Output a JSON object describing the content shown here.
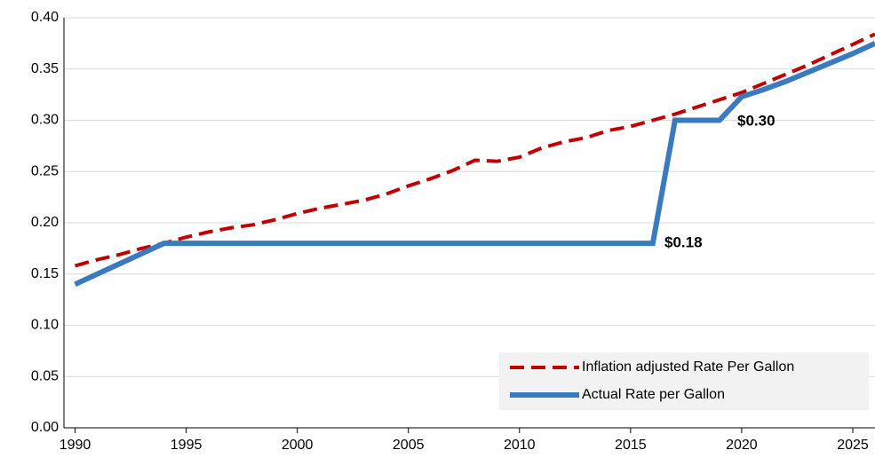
{
  "chart_data": {
    "type": "line",
    "xlim": [
      1989.5,
      2026
    ],
    "xticks": [
      1990,
      1995,
      2000,
      2005,
      2010,
      2015,
      2020,
      2025
    ],
    "ylim": [
      0,
      0.4
    ],
    "yticks": [
      {
        "value": 0,
        "label": "0.00"
      },
      0.05,
      {
        "value": 0.1,
        "label": "0.10"
      },
      0.15,
      {
        "value": 0.2,
        "label": "0.20"
      },
      0.25,
      {
        "value": 0.3,
        "label": "0.30"
      },
      0.35,
      {
        "value": 0.4,
        "label": "0.40"
      }
    ],
    "grid": true,
    "legend": "lower right",
    "series": [
      {
        "name": "Inflation adjusted Rate Per Gallon",
        "color": "#c00000",
        "dashed": true,
        "x": [
          1990,
          1991,
          1992,
          1993,
          1994,
          1995,
          1996,
          1997,
          1998,
          1999,
          2000,
          2001,
          2002,
          2003,
          2004,
          2005,
          2006,
          2007,
          2008,
          2009,
          2010,
          2011,
          2012,
          2013,
          2014,
          2015,
          2016,
          2017,
          2018,
          2019,
          2020,
          2021,
          2022,
          2023,
          2024,
          2025,
          2026
        ],
        "values": [
          0.158,
          0.164,
          0.169,
          0.175,
          0.18,
          0.186,
          0.191,
          0.195,
          0.198,
          0.203,
          0.209,
          0.214,
          0.218,
          0.222,
          0.228,
          0.236,
          0.243,
          0.251,
          0.261,
          0.26,
          0.264,
          0.273,
          0.279,
          0.283,
          0.29,
          0.294,
          0.3,
          0.306,
          0.313,
          0.32,
          0.327,
          0.336,
          0.345,
          0.354,
          0.364,
          0.374,
          0.384
        ]
      },
      {
        "name": "Actual Rate per Gallon",
        "color": "#3a7abf",
        "dashed": false,
        "x": [
          1990,
          1994,
          2016,
          2017,
          2019,
          2020,
          2021,
          2022,
          2023,
          2024,
          2025,
          2026
        ],
        "values": [
          0.14,
          0.18,
          0.18,
          0.3,
          0.3,
          0.323,
          0.33,
          0.338,
          0.347,
          0.356,
          0.365,
          0.375
        ]
      }
    ],
    "annotations": [
      "$0.18",
      "$0.30"
    ]
  }
}
